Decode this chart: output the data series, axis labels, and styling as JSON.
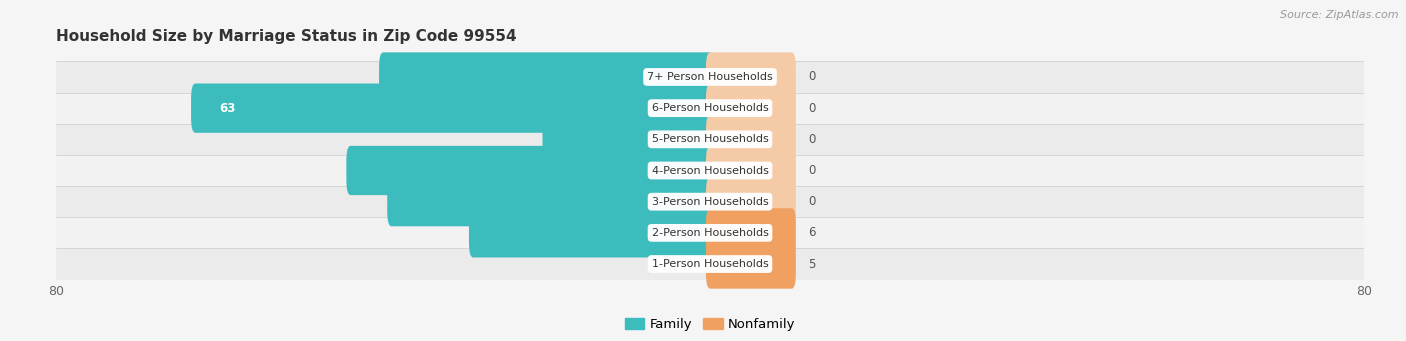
{
  "title": "Household Size by Marriage Status in Zip Code 99554",
  "source": "Source: ZipAtlas.com",
  "categories": [
    "7+ Person Households",
    "6-Person Households",
    "5-Person Households",
    "4-Person Households",
    "3-Person Households",
    "2-Person Households",
    "1-Person Households"
  ],
  "family_values": [
    40,
    63,
    20,
    44,
    39,
    29,
    0
  ],
  "nonfamily_values": [
    0,
    0,
    0,
    0,
    0,
    6,
    5
  ],
  "family_color": "#3dbcbd",
  "nonfamily_color_zero": "#f5cba7",
  "nonfamily_color_nonzero": "#f0a060",
  "xlim_left": -80,
  "xlim_right": 80,
  "bg_color": "#f5f5f5",
  "row_colors": [
    "#ebebeb",
    "#f2f2f2"
  ],
  "bar_height": 0.58,
  "nonfamily_min_display": 10,
  "label_fontsize": 8.5,
  "cat_fontsize": 8.0,
  "title_fontsize": 11,
  "source_fontsize": 8
}
